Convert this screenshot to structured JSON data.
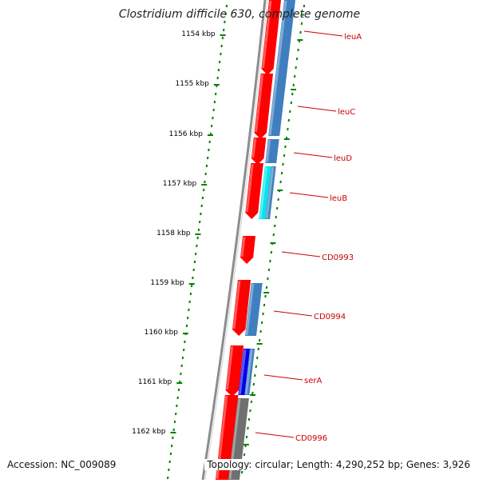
{
  "title": "Clostridium difficile 630, complete genome",
  "footer": {
    "accession": "Accession: NC_009089",
    "stats": "Topology: circular; Length: 4,290,252 bp; Genes: 3,926"
  },
  "colors": {
    "forward_cds": "#ff0000",
    "reverse_cds": "#3f7fbf",
    "light_blue_cds": "#00e5ee",
    "dark_blue_cds": "#0000ee",
    "grey_cds": "#707070",
    "backbone": "#8c8c8c",
    "ticks": "#008000",
    "gene_label": "#cc0000"
  },
  "scale": {
    "ticks": [
      {
        "label": "1154 kbp"
      },
      {
        "label": "1155 kbp"
      },
      {
        "label": "1156 kbp"
      },
      {
        "label": "1157 kbp"
      },
      {
        "label": "1158 kbp"
      },
      {
        "label": "1159 kbp"
      },
      {
        "label": "1160 kbp"
      },
      {
        "label": "1161 kbp"
      },
      {
        "label": "1162 kbp"
      }
    ]
  },
  "genes": [
    {
      "name": "leuA"
    },
    {
      "name": "leuC"
    },
    {
      "name": "leuD"
    },
    {
      "name": "leuB"
    },
    {
      "name": "CD0993"
    },
    {
      "name": "CD0994"
    },
    {
      "name": "serA"
    },
    {
      "name": "CD0996"
    }
  ]
}
